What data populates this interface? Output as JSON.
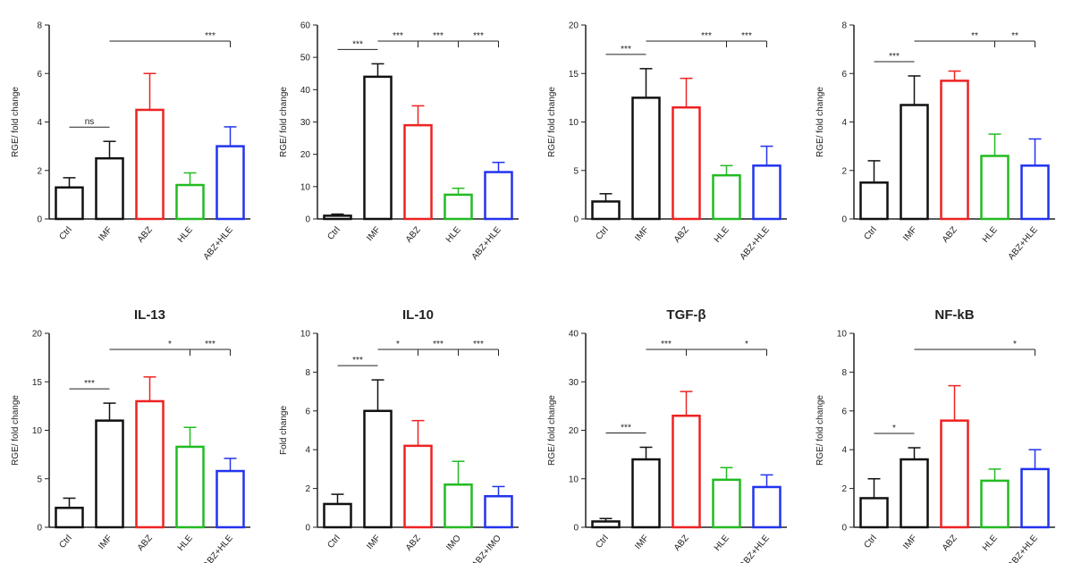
{
  "chart_data": [
    {
      "type": "bar",
      "y_label": "RGE/ fold change",
      "categories": [
        "Ctrl",
        "IMF",
        "ABZ",
        "HLE",
        "ABZ+HLE"
      ],
      "values": [
        1.3,
        2.5,
        4.5,
        1.4,
        3.0
      ],
      "errors": [
        0.4,
        0.7,
        1.5,
        0.5,
        0.8
      ],
      "colors": [
        "#111111",
        "#111111",
        "#ee2222",
        "#22bb22",
        "#2233ee"
      ],
      "ylim": [
        0,
        8
      ],
      "yticks": [
        0,
        2,
        4,
        6,
        8
      ],
      "annotations": [
        {
          "text": "ns",
          "from": 0,
          "to": 1
        },
        {
          "text": "***",
          "from": 1,
          "to": 4
        }
      ]
    },
    {
      "type": "bar",
      "y_label": "RGE/ fold change",
      "categories": [
        "Ctrl",
        "IMF",
        "ABZ",
        "HLE",
        "ABZ+HLE"
      ],
      "values": [
        1,
        44,
        29,
        7.5,
        14.5
      ],
      "errors": [
        0.5,
        4,
        6,
        2,
        3
      ],
      "colors": [
        "#111111",
        "#111111",
        "#ee2222",
        "#22bb22",
        "#2233ee"
      ],
      "ylim": [
        0,
        60
      ],
      "yticks": [
        0,
        10,
        20,
        30,
        40,
        50,
        60
      ],
      "annotations": [
        {
          "text": "***",
          "from": 0,
          "to": 1
        },
        {
          "text": "***",
          "from": 1,
          "to": 2
        },
        {
          "text": "***",
          "from": 1,
          "to": 3
        },
        {
          "text": "***",
          "from": 1,
          "to": 4
        }
      ]
    },
    {
      "type": "bar",
      "y_label": "RGE/ fold change",
      "categories": [
        "Ctrl",
        "IMF",
        "ABZ",
        "HLE",
        "ABZ+HLE"
      ],
      "values": [
        1.8,
        12.5,
        11.5,
        4.5,
        5.5
      ],
      "errors": [
        0.8,
        3,
        3,
        1,
        2
      ],
      "colors": [
        "#111111",
        "#111111",
        "#ee2222",
        "#22bb22",
        "#2233ee"
      ],
      "ylim": [
        0,
        20
      ],
      "yticks": [
        0,
        5,
        10,
        15,
        20
      ],
      "annotations": [
        {
          "text": "***",
          "from": 0,
          "to": 1
        },
        {
          "text": "***",
          "from": 1,
          "to": 3
        },
        {
          "text": "***",
          "from": 1,
          "to": 4
        }
      ]
    },
    {
      "type": "bar",
      "y_label": "RGE/ fold change",
      "categories": [
        "Ctrl",
        "IMF",
        "ABZ",
        "HLE",
        "ABZ+HLE"
      ],
      "values": [
        1.5,
        4.7,
        5.7,
        2.6,
        2.2
      ],
      "errors": [
        0.9,
        1.2,
        0.4,
        0.9,
        1.1
      ],
      "colors": [
        "#111111",
        "#111111",
        "#ee2222",
        "#22bb22",
        "#2233ee"
      ],
      "ylim": [
        0,
        8
      ],
      "yticks": [
        0,
        2,
        4,
        6,
        8
      ],
      "annotations": [
        {
          "text": "***",
          "from": 0,
          "to": 1
        },
        {
          "text": "**",
          "from": 1,
          "to": 3
        },
        {
          "text": "**",
          "from": 1,
          "to": 4
        }
      ]
    },
    {
      "type": "bar",
      "title": "IL-13",
      "y_label": "RGE/ fold change",
      "categories": [
        "Ctrl",
        "IMF",
        "ABZ",
        "HLE",
        "ABZ+HLE"
      ],
      "values": [
        2,
        11,
        13,
        8.3,
        5.8
      ],
      "errors": [
        1,
        1.8,
        2.5,
        2,
        1.3
      ],
      "colors": [
        "#111111",
        "#111111",
        "#ee2222",
        "#22bb22",
        "#2233ee"
      ],
      "ylim": [
        0,
        20
      ],
      "yticks": [
        0,
        5,
        10,
        15,
        20
      ],
      "annotations": [
        {
          "text": "***",
          "from": 0,
          "to": 1
        },
        {
          "text": "*",
          "from": 1,
          "to": 3
        },
        {
          "text": "***",
          "from": 1,
          "to": 4
        }
      ]
    },
    {
      "type": "bar",
      "title": "IL-10",
      "y_label": "Fold change",
      "categories": [
        "Ctrl",
        "IMF",
        "ABZ",
        "IMO",
        "ABZ+IMO"
      ],
      "values": [
        1.2,
        6,
        4.2,
        2.2,
        1.6
      ],
      "errors": [
        0.5,
        1.6,
        1.3,
        1.2,
        0.5
      ],
      "colors": [
        "#111111",
        "#111111",
        "#ee2222",
        "#22bb22",
        "#2233ee"
      ],
      "ylim": [
        0,
        10
      ],
      "yticks": [
        0,
        2,
        4,
        6,
        8,
        10
      ],
      "annotations": [
        {
          "text": "***",
          "from": 0,
          "to": 1
        },
        {
          "text": "*",
          "from": 1,
          "to": 2
        },
        {
          "text": "***",
          "from": 1,
          "to": 3
        },
        {
          "text": "***",
          "from": 1,
          "to": 4
        }
      ]
    },
    {
      "type": "bar",
      "title": "TGF-β",
      "y_label": "RGE/ fold change",
      "categories": [
        "Ctrl",
        "IMF",
        "ABZ",
        "HLE",
        "ABZ+HLE"
      ],
      "values": [
        1.2,
        14,
        23,
        9.8,
        8.3
      ],
      "errors": [
        0.6,
        2.5,
        5,
        2.5,
        2.5
      ],
      "colors": [
        "#111111",
        "#111111",
        "#ee2222",
        "#22bb22",
        "#2233ee"
      ],
      "ylim": [
        0,
        40
      ],
      "yticks": [
        0,
        10,
        20,
        30,
        40
      ],
      "annotations": [
        {
          "text": "***",
          "from": 0,
          "to": 1
        },
        {
          "text": "***",
          "from": 1,
          "to": 2
        },
        {
          "text": "*",
          "from": 1,
          "to": 4
        }
      ]
    },
    {
      "type": "bar",
      "title": "NF-kB",
      "y_label": "RGE/ fold change",
      "categories": [
        "Ctrl",
        "IMF",
        "ABZ",
        "HLE",
        "ABZ+HLE"
      ],
      "values": [
        1.5,
        3.5,
        5.5,
        2.4,
        3.0
      ],
      "errors": [
        1,
        0.6,
        1.8,
        0.6,
        1
      ],
      "colors": [
        "#111111",
        "#111111",
        "#ee2222",
        "#22bb22",
        "#2233ee"
      ],
      "ylim": [
        0,
        10
      ],
      "yticks": [
        0,
        2,
        4,
        6,
        8,
        10
      ],
      "annotations": [
        {
          "text": "*",
          "from": 0,
          "to": 1
        },
        {
          "text": "*",
          "from": 1,
          "to": 4
        }
      ]
    }
  ]
}
